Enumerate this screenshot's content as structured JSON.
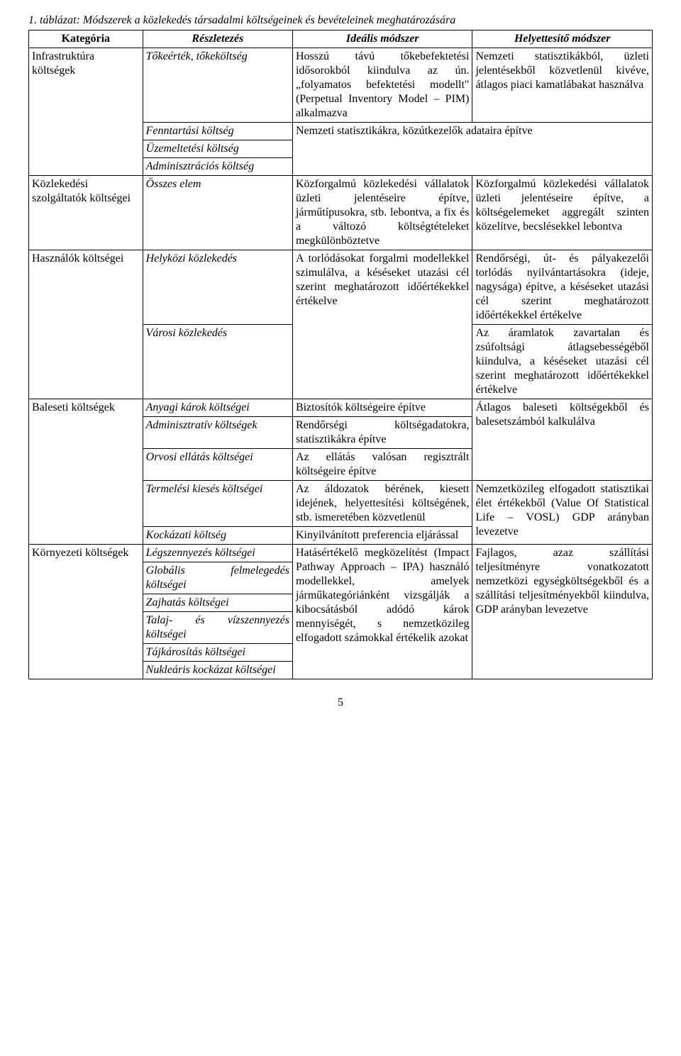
{
  "caption": "1. táblázat: Módszerek a közlekedés társadalmi költségeinek és bevételeinek meghatározására",
  "headers": {
    "c1": "Kategória",
    "c2": "Részletezés",
    "c3": "Ideális módszer",
    "c4": "Helyettesítő módszer"
  },
  "rows": {
    "infra": {
      "cat": "Infrastruktúra költségek",
      "r1": {
        "detail": "Tőkeérték, tőkeköltség",
        "ideal": "Hosszú távú tőkebefektetési idősorokból kiindulva az ún. „folyamatos befektetési modellt\" (Perpetual Inventory Model – PIM) alkalmazva",
        "sub": "Nemzeti statisztikákból, üzleti jelentésekből közvetlenül kivéve, átlagos piaci kamatlábakat használva"
      },
      "r2": {
        "detail": "Fenntartási költség",
        "ideal": "Nemzeti statisztikákra, közútkezelők adataira építve"
      },
      "r3": {
        "detail": "Üzemeltetési költség"
      },
      "r4": {
        "detail": "Adminisztrációs költség"
      }
    },
    "szolg": {
      "cat": "Közlekedési szolgáltatók költségei",
      "detail": "Összes elem",
      "ideal": "Közforgalmú közlekedési vállalatok üzleti jelentéseire építve, járműtípusokra, stb. lebontva, a fix és a változó költségtételeket megkülönböztetve",
      "sub": "Közforgalmú közlekedési vállalatok üzleti jelentéseire építve, a költségelemeket aggregált szinten közelítve, becslésekkel lebontva"
    },
    "hasznalok": {
      "cat": "Használók költségei",
      "r1": {
        "detail": "Helyközi közlekedés",
        "ideal": "A torlódásokat forgalmi modellekkel szimulálva, a késéseket utazási cél szerint meghatározott időértékekkel értékelve",
        "sub": "Rendőrségi, út- és pályakezelői torlódás nyilvántartásokra (ideje, nagysága) építve, a késéseket utazási cél szerint meghatározott időértékekkel értékelve"
      },
      "r2": {
        "detail": "Városi közlekedés",
        "sub": "Az áramlatok zavartalan és zsúfoltsági átlagsebességéből kiindulva, a késéseket utazási cél szerint meghatározott időértékekkel értékelve"
      }
    },
    "baleset": {
      "cat": "Baleseti költségek",
      "r1": {
        "detail": "Anyagi károk költségei",
        "ideal": "Biztosítók költségeire építve",
        "sub": "Átlagos baleseti költségekből és balesetszámból kalkulálva"
      },
      "r2": {
        "detail": "Adminisztratív költségek",
        "ideal": "Rendőrségi költségadatokra, statisztikákra építve"
      },
      "r3": {
        "detail": "Orvosi ellátás költségei",
        "ideal": "Az ellátás valósan regisztrált költségeire építve"
      },
      "r4": {
        "detail": "Termelési kiesés költségei",
        "ideal": "Az áldozatok bérének, kiesett idejének, helyettesítési költségének, stb. ismeretében közvetlenül",
        "sub": "Nemzetközileg elfogadott statisztikai élet értékekből (Value Of Statistical Life – VOSL) GDP arányban levezetve"
      },
      "r5": {
        "detail": "Kockázati költség",
        "ideal": "Kinyilvánított preferencia eljárással"
      }
    },
    "kornyezet": {
      "cat": "Környezeti költségek",
      "r1": {
        "detail": "Légszennyezés költségei"
      },
      "r2": {
        "detail": "Globális felmelegedés költségei"
      },
      "r3": {
        "detail": "Zajhatás költségei"
      },
      "r4": {
        "detail": "Talaj- és vízszennyezés költségei"
      },
      "r5": {
        "detail": "Tájkárosítás költségei"
      },
      "r6": {
        "detail": "Nukleáris kockázat költségei"
      },
      "ideal": "Hatásértékelő megközelítést (Impact Pathway Approach – IPA) használó modellekkel, amelyek járműkategóriánként vizsgálják a kibocsátásból adódó károk mennyiségét, s nemzetközileg elfogadott számokkal értékelik azokat",
      "sub": "Fajlagos, azaz szállítási teljesítményre vonatkozatott nemzetközi egységköltségekből és a szállítási teljesítményekből kiindulva, GDP arányban levezetve"
    }
  },
  "pagenum": "5"
}
